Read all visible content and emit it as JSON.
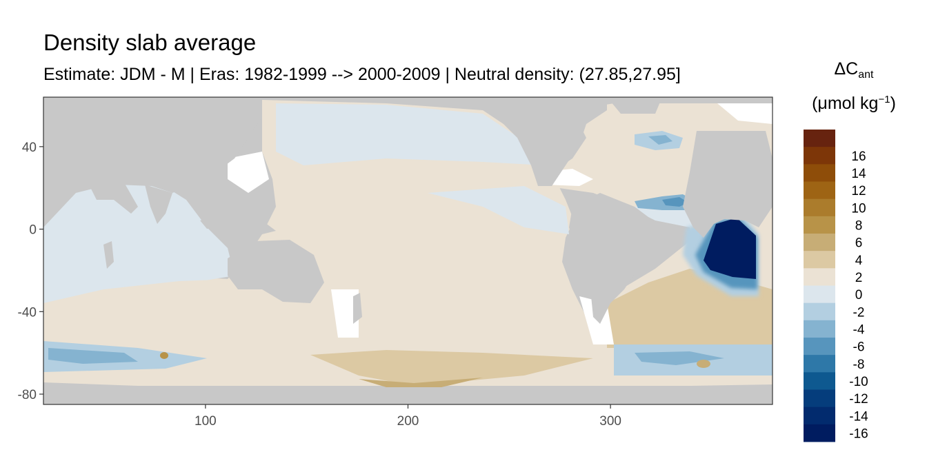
{
  "chart_data": {
    "type": "heatmap",
    "title": "Density slab average",
    "subtitle": "Estimate: JDM - M | Eras: 1982-1999 --> 2000-2009 | Neutral density: (27.85,27.95]",
    "legend_title_main": "ΔC",
    "legend_title_sub": "ant",
    "legend_unit_main": "(μmol kg",
    "legend_unit_sup": "−1",
    "legend_unit_end": ")",
    "xlim": [
      20,
      380
    ],
    "ylim": [
      -85,
      64
    ],
    "x_ticks": [
      100,
      200,
      300
    ],
    "y_ticks": [
      40,
      0,
      -40,
      -80
    ],
    "legend_placement": "right",
    "legend_bins": [
      {
        "label": "",
        "color": "#67230f"
      },
      {
        "label": "16",
        "color": "#7d3608"
      },
      {
        "label": "14",
        "color": "#8e4d09"
      },
      {
        "label": "12",
        "color": "#9e6414"
      },
      {
        "label": "10",
        "color": "#ab7c2c"
      },
      {
        "label": "8",
        "color": "#b89348"
      },
      {
        "label": "6",
        "color": "#c7ad76"
      },
      {
        "label": "4",
        "color": "#dcc9a3"
      },
      {
        "label": "2",
        "color": "#ebe2d4"
      },
      {
        "label": "0",
        "color": "#dce6ed"
      },
      {
        "label": "-2",
        "color": "#b3cfe1"
      },
      {
        "label": "-4",
        "color": "#85b3d0"
      },
      {
        "label": "-6",
        "color": "#5795bd"
      },
      {
        "label": "-8",
        "color": "#2e78a8"
      },
      {
        "label": "-10",
        "color": "#0e5990"
      },
      {
        "label": "-12",
        "color": "#053d7c"
      },
      {
        "label": "-14",
        "color": "#022b6e"
      },
      {
        "label": "-16",
        "color": "#001c60"
      }
    ],
    "colors": {
      "land": "#c8c8c8",
      "no_data": "#ffffff",
      "ocean_zero_pos": "#ebe2d4",
      "ocean_zero_neg": "#dce6ed"
    }
  }
}
